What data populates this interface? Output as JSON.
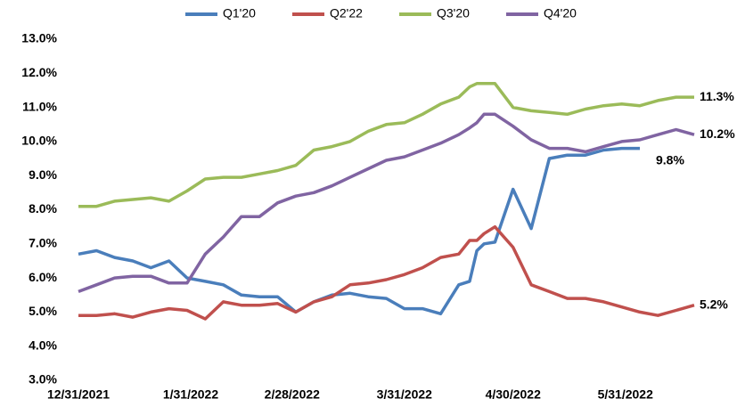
{
  "chart_data": {
    "type": "line",
    "x": [
      "12/31/2021",
      "1/5/2022",
      "1/10/2022",
      "1/15/2022",
      "1/20/2022",
      "1/25/2022",
      "1/30/2022",
      "2/4/2022",
      "2/9/2022",
      "2/14/2022",
      "2/19/2022",
      "2/24/2022",
      "3/1/2022",
      "3/6/2022",
      "3/11/2022",
      "3/16/2022",
      "3/21/2022",
      "3/26/2022",
      "3/31/2022",
      "4/5/2022",
      "4/10/2022",
      "4/15/2022",
      "4/18/2022",
      "4/20/2022",
      "4/22/2022",
      "4/25/2022",
      "4/30/2022",
      "5/5/2022",
      "5/10/2022",
      "5/15/2022",
      "5/20/2022",
      "5/25/2022",
      "5/30/2022",
      "6/4/2022",
      "6/9/2022",
      "6/14/2022",
      "6/19/2022"
    ],
    "series": [
      {
        "name": "Q1'20",
        "color": "#4a7ebb",
        "values": [
          6.7,
          6.8,
          6.6,
          6.5,
          6.3,
          6.5,
          6.0,
          5.9,
          5.8,
          5.5,
          5.45,
          5.45,
          5.0,
          5.3,
          5.5,
          5.55,
          5.45,
          5.4,
          5.1,
          5.1,
          4.95,
          5.8,
          5.9,
          6.8,
          7.0,
          7.05,
          8.6,
          7.45,
          9.5,
          9.6,
          9.6,
          9.75,
          9.8,
          9.8,
          null,
          null,
          null
        ],
        "value_labels": [
          null,
          null,
          null,
          null,
          null,
          null,
          null,
          null,
          null,
          null,
          null,
          null,
          null,
          null,
          null,
          null,
          null,
          null,
          null,
          null,
          null,
          null,
          null,
          null,
          null,
          null,
          null,
          null,
          null,
          null,
          null,
          null,
          null,
          "9.8%",
          null,
          null,
          null
        ]
      },
      {
        "name": "Q2'22",
        "color": "#c0504d",
        "values": [
          4.9,
          4.9,
          4.95,
          4.85,
          5.0,
          5.1,
          5.05,
          4.8,
          5.3,
          5.2,
          5.2,
          5.25,
          5.0,
          5.3,
          5.45,
          5.8,
          5.85,
          5.95,
          6.1,
          6.3,
          6.6,
          6.7,
          7.1,
          7.1,
          7.3,
          7.5,
          6.9,
          5.8,
          5.6,
          5.4,
          5.4,
          5.3,
          5.15,
          5.0,
          4.9,
          5.05,
          5.2
        ],
        "value_labels": [
          null,
          null,
          null,
          null,
          null,
          null,
          null,
          null,
          null,
          null,
          null,
          null,
          null,
          null,
          null,
          null,
          null,
          null,
          null,
          null,
          null,
          null,
          null,
          null,
          null,
          null,
          null,
          null,
          null,
          null,
          null,
          null,
          null,
          null,
          null,
          null,
          "5.2%"
        ]
      },
      {
        "name": "Q3'20",
        "color": "#9bbb59",
        "values": [
          8.1,
          8.1,
          8.25,
          8.3,
          8.35,
          8.25,
          8.55,
          8.9,
          8.95,
          8.95,
          9.05,
          9.15,
          9.3,
          9.75,
          9.85,
          10.0,
          10.3,
          10.5,
          10.55,
          10.8,
          11.1,
          11.3,
          11.6,
          11.7,
          11.7,
          11.7,
          11.0,
          10.9,
          10.85,
          10.8,
          10.95,
          11.05,
          11.1,
          11.05,
          11.2,
          11.3,
          11.3
        ],
        "value_labels": [
          null,
          null,
          null,
          null,
          null,
          null,
          null,
          null,
          null,
          null,
          null,
          null,
          null,
          null,
          null,
          null,
          null,
          null,
          null,
          null,
          null,
          null,
          null,
          null,
          null,
          null,
          null,
          null,
          null,
          null,
          null,
          null,
          null,
          null,
          null,
          null,
          "11.3%"
        ]
      },
      {
        "name": "Q4'20",
        "color": "#8064a2",
        "values": [
          5.6,
          5.8,
          6.0,
          6.05,
          6.05,
          5.85,
          5.85,
          6.7,
          7.2,
          7.8,
          7.8,
          8.2,
          8.4,
          8.5,
          8.7,
          8.95,
          9.2,
          9.45,
          9.55,
          9.75,
          9.95,
          10.2,
          10.4,
          10.55,
          10.8,
          10.8,
          10.45,
          10.05,
          9.8,
          9.8,
          9.7,
          9.85,
          10.0,
          10.05,
          10.2,
          10.35,
          10.2
        ],
        "value_labels": [
          null,
          null,
          null,
          null,
          null,
          null,
          null,
          null,
          null,
          null,
          null,
          null,
          null,
          null,
          null,
          null,
          null,
          null,
          null,
          null,
          null,
          null,
          null,
          null,
          null,
          null,
          null,
          null,
          null,
          null,
          null,
          null,
          null,
          null,
          null,
          null,
          "10.2%"
        ]
      }
    ],
    "xlim": [
      "12/31/2021",
      "6/19/2022"
    ],
    "xticks": [
      "12/31/2021",
      "1/31/2022",
      "2/28/2022",
      "3/31/2022",
      "4/30/2022",
      "5/31/2022"
    ],
    "ylim": [
      3,
      13
    ],
    "yticks": [
      {
        "value": 3,
        "label": "3.0%"
      },
      {
        "value": 4,
        "label": "4.0%"
      },
      {
        "value": 5,
        "label": "5.0%"
      },
      {
        "value": 6,
        "label": "6.0%"
      },
      {
        "value": 7,
        "label": "7.0%"
      },
      {
        "value": 8,
        "label": "8.0%"
      },
      {
        "value": 9,
        "label": "9.0%"
      },
      {
        "value": 10,
        "label": "10.0%"
      },
      {
        "value": 11,
        "label": "11.0%"
      },
      {
        "value": 12,
        "label": "12.0%"
      },
      {
        "value": 13,
        "label": "13.0%"
      }
    ],
    "legend": "top"
  }
}
